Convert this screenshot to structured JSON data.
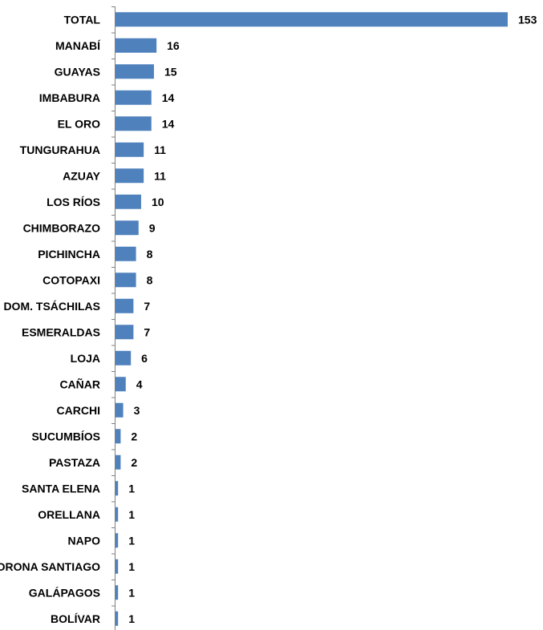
{
  "colors": {
    "bar": "#4F81BD",
    "axis": "#808080",
    "text": "#000000"
  },
  "chart_data": {
    "type": "bar",
    "orientation": "horizontal",
    "categories": [
      "TOTAL",
      "MANABÍ",
      "GUAYAS",
      "IMBABURA",
      "EL ORO",
      "TUNGURAHUA",
      "AZUAY",
      "LOS RÍOS",
      "CHIMBORAZO",
      "PICHINCHA",
      "COTOPAXI",
      "STO. DOM. TSÁCHILAS",
      "ESMERALDAS",
      "LOJA",
      "CAÑAR",
      "CARCHI",
      "SUCUMBÍOS",
      "PASTAZA",
      "SANTA ELENA",
      "ORELLANA",
      "NAPO",
      "MORONA SANTIAGO",
      "GALÁPAGOS",
      "BOLÍVAR"
    ],
    "values": [
      153,
      16,
      15,
      14,
      14,
      11,
      11,
      10,
      9,
      8,
      8,
      7,
      7,
      6,
      4,
      3,
      2,
      2,
      1,
      1,
      1,
      1,
      1,
      1
    ],
    "value_labels": [
      "153",
      "16",
      "15",
      "14",
      "14",
      "11",
      "11",
      "10",
      "9",
      "8",
      "8",
      "7",
      "7",
      "6",
      "4",
      "3",
      "2",
      "2",
      "1",
      "1",
      "1",
      "1",
      "1",
      "1"
    ],
    "xlim": [
      0,
      153
    ],
    "grid": false,
    "legend": "none"
  }
}
